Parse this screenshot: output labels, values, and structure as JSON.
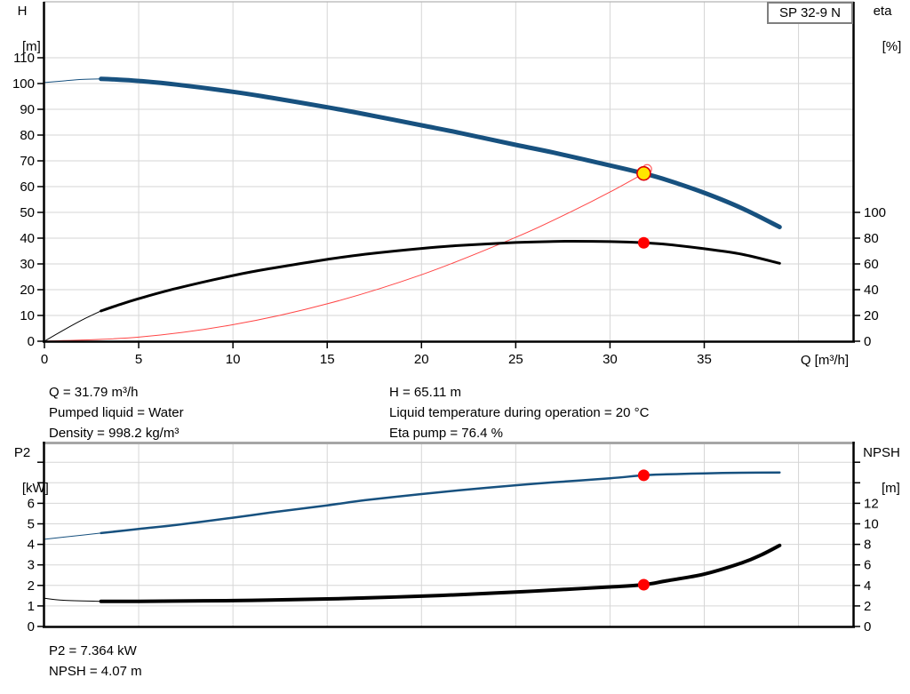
{
  "pump_model": "SP 32-9 N",
  "labels": {
    "left_axis_top": "H",
    "left_axis_top_unit": "[m]",
    "right_axis_top": "eta",
    "right_axis_top_unit": "[%]",
    "x_axis_title": "Q [m³/h]",
    "left_axis_bottom": "P2",
    "left_axis_bottom_unit": "[kW]",
    "right_axis_bottom": "NPSH",
    "right_axis_bottom_unit": "[m]"
  },
  "info": {
    "left": [
      "Q = 31.79 m³/h",
      "Pumped liquid = Water",
      "Density = 998.2 kg/m³"
    ],
    "right": [
      "H = 65.11 m",
      "Liquid temperature during operation = 20 °C",
      "Eta pump = 76.4 %"
    ]
  },
  "results": [
    "P2 = 7.364 kW",
    "NPSH = 4.07 m"
  ],
  "operating_point": {
    "q_m3h": 31.79,
    "h_m": 65.11,
    "eta_pct": 76.4,
    "p2_kw": 7.364,
    "npsh_m": 4.07,
    "pumped_liquid": "Water",
    "density_kg_m3": 998.2,
    "liquid_temperature_c": 20
  },
  "colors": {
    "curve_blue": "#17517f",
    "curve_black": "#000000",
    "system_curve_red": "#ff4545",
    "marker_red": "#ff0000",
    "duty_fill": "#ffe600",
    "duty_stroke": "#dd0000",
    "grid": "#d6d6d6",
    "axis": "#000000",
    "frame_gray": "#a6a6a6",
    "badge_border": "#7f7f7f"
  },
  "chart_data": [
    {
      "id": "pump-curve",
      "type": "line",
      "x_label": "Q [m³/h]",
      "x_range": [
        0,
        42.9
      ],
      "axes": {
        "left": {
          "name": "H",
          "unit": "m",
          "labeled_ticks": [
            0,
            10,
            20,
            30,
            40,
            50,
            60,
            70,
            80,
            90,
            100,
            110
          ],
          "unlabeled_ticks": []
        },
        "right": {
          "name": "eta",
          "unit": "%",
          "labeled_ticks": [
            0,
            20,
            40,
            60,
            80,
            100
          ],
          "unlabeled_ticks": []
        },
        "x": {
          "labeled_ticks": [
            0,
            5,
            10,
            15,
            20,
            25,
            30,
            35
          ],
          "grid": [
            5,
            10,
            15,
            20,
            25,
            30,
            35,
            40
          ]
        },
        "ygrid": {
          "axis": "H",
          "values": [
            10,
            20,
            30,
            40,
            50,
            60,
            70,
            80,
            90,
            100,
            110
          ]
        }
      },
      "series": [
        {
          "name": "system-curve",
          "axis": "H",
          "color": "#ff4545",
          "width": 1,
          "thin_until": null,
          "points": [
            [
              0,
              0
            ],
            [
              5,
              1.6
            ],
            [
              10,
              6.4
            ],
            [
              15,
              14.5
            ],
            [
              20,
              25.8
            ],
            [
              25,
              40.3
            ],
            [
              28,
              50.5
            ],
            [
              30,
              57.9
            ],
            [
              31.79,
              65.11
            ]
          ]
        },
        {
          "name": "efficiency-curve",
          "axis": "eta",
          "color": "#000000",
          "width": 3,
          "thin_until": 3,
          "points": [
            [
              0,
              0
            ],
            [
              1,
              8.5
            ],
            [
              2,
              16.5
            ],
            [
              3,
              23.5
            ],
            [
              4,
              28.5
            ],
            [
              5,
              33
            ],
            [
              7,
              41
            ],
            [
              10,
              51
            ],
            [
              12,
              56.5
            ],
            [
              15,
              63.5
            ],
            [
              17,
              67.5
            ],
            [
              20,
              72
            ],
            [
              22,
              74.3
            ],
            [
              25,
              76.6
            ],
            [
              27,
              77.4
            ],
            [
              28,
              77.6
            ],
            [
              30,
              77.3
            ],
            [
              31.79,
              76.4
            ],
            [
              33,
              75.2
            ],
            [
              35,
              71.8
            ],
            [
              37,
              67.5
            ],
            [
              39,
              60.5
            ]
          ]
        },
        {
          "name": "head-curve",
          "axis": "H",
          "color": "#17517f",
          "width": 5,
          "thin_until": 3,
          "points": [
            [
              0,
              100.4
            ],
            [
              1,
              101.0
            ],
            [
              2,
              101.6
            ],
            [
              3,
              101.8
            ],
            [
              4,
              101.5
            ],
            [
              5,
              101.0
            ],
            [
              7,
              99.6
            ],
            [
              10,
              96.8
            ],
            [
              12,
              94.5
            ],
            [
              15,
              90.8
            ],
            [
              17,
              88.1
            ],
            [
              20,
              83.8
            ],
            [
              22,
              80.9
            ],
            [
              25,
              76.2
            ],
            [
              27,
              73.2
            ],
            [
              30,
              68.2
            ],
            [
              31.79,
              65.11
            ],
            [
              33,
              62.6
            ],
            [
              35,
              57.6
            ],
            [
              37,
              51.6
            ],
            [
              39,
              44.3
            ]
          ]
        }
      ],
      "markers": [
        {
          "style": "dot",
          "axis": "eta",
          "q": 31.79,
          "v": 76.4,
          "name": "eta-operating-dot"
        },
        {
          "style": "open",
          "axis": "H",
          "q": 31.97,
          "v": 66.8,
          "name": "system-curve-end-circle"
        },
        {
          "style": "duty",
          "axis": "H",
          "q": 31.79,
          "v": 65.11,
          "name": "duty-point"
        }
      ]
    },
    {
      "id": "power-npsh-curve",
      "type": "line",
      "x_label": "",
      "x_range": [
        0,
        42.9
      ],
      "axes": {
        "left": {
          "name": "P2",
          "unit": "kW",
          "labeled_ticks": [
            0,
            1,
            2,
            3,
            4,
            5,
            6
          ],
          "unlabeled_ticks": [
            7,
            8
          ]
        },
        "right": {
          "name": "NPSH",
          "unit": "m",
          "labeled_ticks": [
            0,
            2,
            4,
            6,
            8,
            10,
            12
          ],
          "unlabeled_ticks": [
            14,
            16
          ]
        },
        "x": {
          "labeled_ticks": [],
          "grid": [
            5,
            10,
            15,
            20,
            25,
            30,
            35,
            40
          ]
        },
        "ygrid": {
          "axis": "P2",
          "values": [
            1,
            2,
            3,
            4,
            5,
            6,
            7,
            8
          ]
        }
      },
      "series": [
        {
          "name": "p2-curve",
          "axis": "P2",
          "color": "#17517f",
          "width": 2.5,
          "thin_until": 3,
          "points": [
            [
              0,
              4.25
            ],
            [
              1,
              4.35
            ],
            [
              2,
              4.45
            ],
            [
              3,
              4.55
            ],
            [
              5,
              4.75
            ],
            [
              7,
              4.95
            ],
            [
              10,
              5.3
            ],
            [
              12,
              5.55
            ],
            [
              15,
              5.9
            ],
            [
              17,
              6.15
            ],
            [
              20,
              6.45
            ],
            [
              22,
              6.63
            ],
            [
              25,
              6.88
            ],
            [
              27,
              7.02
            ],
            [
              30,
              7.22
            ],
            [
              31.79,
              7.364
            ],
            [
              33,
              7.41
            ],
            [
              35,
              7.46
            ],
            [
              37,
              7.49
            ],
            [
              39,
              7.5
            ]
          ]
        },
        {
          "name": "npsh-curve",
          "axis": "NPSH",
          "color": "#000000",
          "width": 4,
          "thin_until": 3,
          "points": [
            [
              0,
              2.75
            ],
            [
              1,
              2.55
            ],
            [
              3,
              2.45
            ],
            [
              5,
              2.45
            ],
            [
              7,
              2.48
            ],
            [
              10,
              2.52
            ],
            [
              12,
              2.58
            ],
            [
              15,
              2.68
            ],
            [
              17,
              2.78
            ],
            [
              20,
              2.95
            ],
            [
              22,
              3.1
            ],
            [
              25,
              3.35
            ],
            [
              27,
              3.55
            ],
            [
              30,
              3.85
            ],
            [
              31.79,
              4.07
            ],
            [
              33,
              4.45
            ],
            [
              35,
              5.1
            ],
            [
              37,
              6.2
            ],
            [
              38,
              6.95
            ],
            [
              39,
              7.9
            ]
          ]
        }
      ],
      "markers": [
        {
          "style": "dot",
          "axis": "P2",
          "q": 31.79,
          "v": 7.364,
          "name": "p2-operating-dot"
        },
        {
          "style": "dot",
          "axis": "NPSH",
          "q": 31.79,
          "v": 4.07,
          "name": "npsh-operating-dot"
        }
      ]
    }
  ]
}
